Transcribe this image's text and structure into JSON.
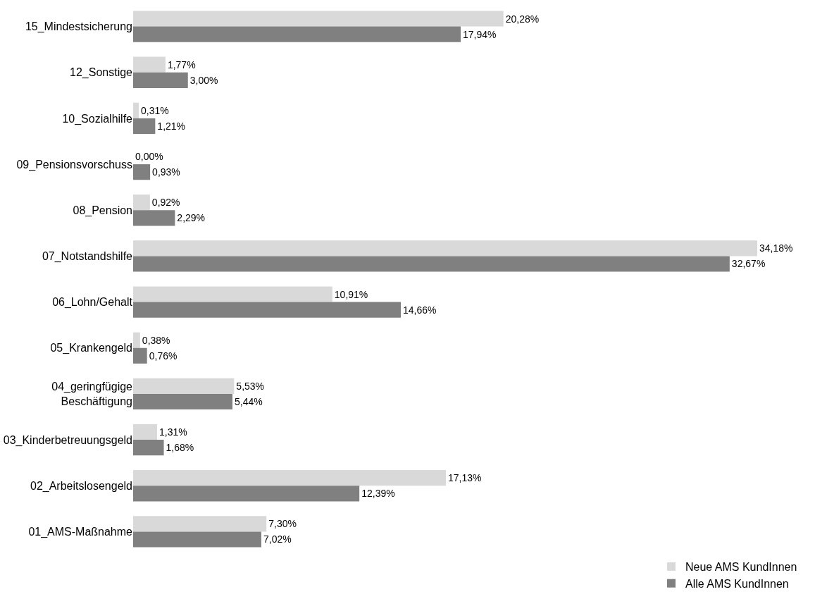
{
  "chart_data": {
    "type": "bar",
    "orientation": "horizontal",
    "legend": "bottom right",
    "categories": [
      "15_Mindestsicherung",
      "12_Sonstige",
      "10_Sozialhilfe",
      "09_Pensionsvorschuss",
      "08_Pension",
      "07_Notstandshilfe",
      "06_Lohn/Gehalt",
      "05_Krankengeld",
      "04_geringfügige\nBeschäftigung",
      "03_Kinderbetreuungsgeld",
      "02_Arbeitslosengeld",
      "01_AMS-Maßnahme"
    ],
    "series": [
      {
        "name": "Neue AMS KundInnen",
        "color": "#d9d9d9",
        "values": [
          20.28,
          1.77,
          0.31,
          0.0,
          0.92,
          34.18,
          10.91,
          0.38,
          5.53,
          1.31,
          17.13,
          7.3
        ],
        "value_labels": [
          "20,28%",
          "1,77%",
          "0,31%",
          "0,00%",
          "0,92%",
          "34,18%",
          "10,91%",
          "0,38%",
          "5,53%",
          "1,31%",
          "17,13%",
          "7,30%"
        ]
      },
      {
        "name": "Alle AMS KundInnen",
        "color": "#808080",
        "values": [
          17.94,
          3.0,
          1.21,
          0.93,
          2.29,
          32.67,
          14.66,
          0.76,
          5.44,
          1.68,
          12.39,
          7.02
        ],
        "value_labels": [
          "17,94%",
          "3,00%",
          "1,21%",
          "0,93%",
          "2,29%",
          "32,67%",
          "14,66%",
          "0,76%",
          "5,44%",
          "1,68%",
          "12,39%",
          "7,02%"
        ]
      }
    ]
  }
}
